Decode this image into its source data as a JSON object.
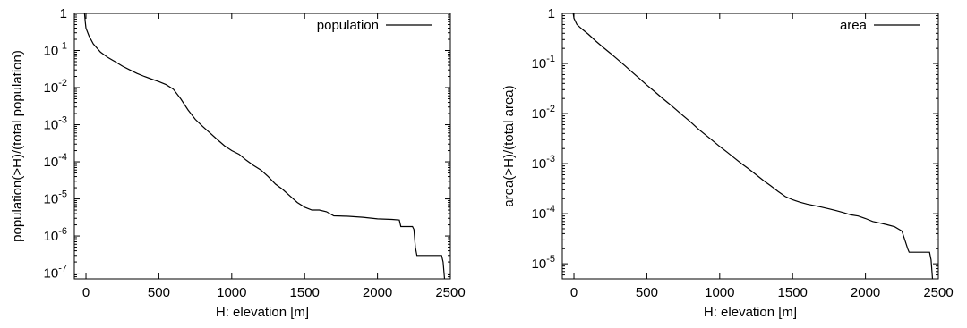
{
  "chart_data": [
    {
      "type": "line",
      "scale": {
        "x": "linear",
        "y": "log"
      },
      "xlabel": "H: elevation [m]",
      "ylabel": "population(>H)/(total population)",
      "xlim": [
        -80,
        2500
      ],
      "ylim": [
        7e-08,
        1
      ],
      "xticks": [
        {
          "value": 0,
          "label": "0"
        },
        {
          "value": 500,
          "label": "500"
        },
        {
          "value": 1000,
          "label": "1000"
        },
        {
          "value": 1500,
          "label": "1500"
        },
        {
          "value": 2000,
          "label": "2000"
        },
        {
          "value": 2500,
          "label": "2500"
        }
      ],
      "yticks": [
        {
          "value": 1,
          "base": "1",
          "exp": ""
        },
        {
          "value": 0.1,
          "base": "10",
          "exp": "-1"
        },
        {
          "value": 0.01,
          "base": "10",
          "exp": "-2"
        },
        {
          "value": 0.001,
          "base": "10",
          "exp": "-3"
        },
        {
          "value": 0.0001,
          "base": "10",
          "exp": "-4"
        },
        {
          "value": 1e-05,
          "base": "10",
          "exp": "-5"
        },
        {
          "value": 1e-06,
          "base": "10",
          "exp": "-6"
        },
        {
          "value": 1e-07,
          "base": "10",
          "exp": "-7"
        }
      ],
      "legend": "top-right",
      "grid": false,
      "series": [
        {
          "name": "population",
          "color": "#000000",
          "points": [
            [
              -10,
              1
            ],
            [
              -5,
              0.6
            ],
            [
              0,
              0.4
            ],
            [
              20,
              0.25
            ],
            [
              50,
              0.15
            ],
            [
              100,
              0.09
            ],
            [
              150,
              0.065
            ],
            [
              200,
              0.05
            ],
            [
              250,
              0.038
            ],
            [
              300,
              0.03
            ],
            [
              350,
              0.024
            ],
            [
              400,
              0.02
            ],
            [
              450,
              0.017
            ],
            [
              500,
              0.0145
            ],
            [
              550,
              0.012
            ],
            [
              600,
              0.009
            ],
            [
              650,
              0.005
            ],
            [
              700,
              0.0025
            ],
            [
              750,
              0.0014
            ],
            [
              800,
              0.0009
            ],
            [
              850,
              0.0006
            ],
            [
              900,
              0.0004
            ],
            [
              950,
              0.00027
            ],
            [
              1000,
              0.0002
            ],
            [
              1050,
              0.00016
            ],
            [
              1100,
              0.00011
            ],
            [
              1150,
              8e-05
            ],
            [
              1200,
              6e-05
            ],
            [
              1250,
              4e-05
            ],
            [
              1300,
              2.5e-05
            ],
            [
              1350,
              1.8e-05
            ],
            [
              1400,
              1.2e-05
            ],
            [
              1450,
              8e-06
            ],
            [
              1500,
              6e-06
            ],
            [
              1550,
              5e-06
            ],
            [
              1600,
              5e-06
            ],
            [
              1650,
              4.5e-06
            ],
            [
              1700,
              3.5e-06
            ],
            [
              1800,
              3.4e-06
            ],
            [
              1900,
              3.2e-06
            ],
            [
              2000,
              2.9e-06
            ],
            [
              2100,
              2.8e-06
            ],
            [
              2150,
              2.7e-06
            ],
            [
              2160,
              1.8e-06
            ],
            [
              2240,
              1.8e-06
            ],
            [
              2250,
              1.5e-06
            ],
            [
              2260,
              5e-07
            ],
            [
              2270,
              3e-07
            ],
            [
              2440,
              3e-07
            ],
            [
              2450,
              2e-07
            ],
            [
              2460,
              7e-08
            ]
          ]
        }
      ]
    },
    {
      "type": "line",
      "scale": {
        "x": "linear",
        "y": "log"
      },
      "xlabel": "H: elevation [m]",
      "ylabel": "area(>H)/(total area)",
      "xlim": [
        -80,
        2500
      ],
      "ylim": [
        5e-06,
        1
      ],
      "xticks": [
        {
          "value": 0,
          "label": "0"
        },
        {
          "value": 500,
          "label": "500"
        },
        {
          "value": 1000,
          "label": "1000"
        },
        {
          "value": 1500,
          "label": "1500"
        },
        {
          "value": 2000,
          "label": "2000"
        },
        {
          "value": 2500,
          "label": "2500"
        }
      ],
      "yticks": [
        {
          "value": 1,
          "base": "1",
          "exp": ""
        },
        {
          "value": 0.1,
          "base": "10",
          "exp": "-1"
        },
        {
          "value": 0.01,
          "base": "10",
          "exp": "-2"
        },
        {
          "value": 0.001,
          "base": "10",
          "exp": "-3"
        },
        {
          "value": 0.0001,
          "base": "10",
          "exp": "-4"
        },
        {
          "value": 1e-05,
          "base": "10",
          "exp": "-5"
        }
      ],
      "legend": "top-right",
      "grid": false,
      "series": [
        {
          "name": "area",
          "color": "#000000",
          "points": [
            [
              -5,
              1
            ],
            [
              0,
              0.8
            ],
            [
              20,
              0.6
            ],
            [
              50,
              0.5
            ],
            [
              100,
              0.38
            ],
            [
              150,
              0.28
            ],
            [
              200,
              0.21
            ],
            [
              250,
              0.16
            ],
            [
              300,
              0.12
            ],
            [
              350,
              0.09
            ],
            [
              400,
              0.067
            ],
            [
              450,
              0.05
            ],
            [
              500,
              0.037
            ],
            [
              550,
              0.028
            ],
            [
              600,
              0.021
            ],
            [
              650,
              0.016
            ],
            [
              700,
              0.012
            ],
            [
              750,
              0.009
            ],
            [
              800,
              0.0068
            ],
            [
              850,
              0.005
            ],
            [
              900,
              0.0038
            ],
            [
              950,
              0.0029
            ],
            [
              1000,
              0.0022
            ],
            [
              1050,
              0.0017
            ],
            [
              1100,
              0.0013
            ],
            [
              1150,
              0.001
            ],
            [
              1200,
              0.00078
            ],
            [
              1250,
              0.0006
            ],
            [
              1300,
              0.00046
            ],
            [
              1350,
              0.00036
            ],
            [
              1400,
              0.00028
            ],
            [
              1450,
              0.00022
            ],
            [
              1500,
              0.00019
            ],
            [
              1550,
              0.00017
            ],
            [
              1600,
              0.000155
            ],
            [
              1650,
              0.000145
            ],
            [
              1700,
              0.000135
            ],
            [
              1750,
              0.000125
            ],
            [
              1800,
              0.000115
            ],
            [
              1850,
              0.000105
            ],
            [
              1900,
              9.5e-05
            ],
            [
              1950,
              9e-05
            ],
            [
              2000,
              8e-05
            ],
            [
              2050,
              7e-05
            ],
            [
              2100,
              6.5e-05
            ],
            [
              2150,
              6e-05
            ],
            [
              2200,
              5.5e-05
            ],
            [
              2250,
              4.5e-05
            ],
            [
              2270,
              3e-05
            ],
            [
              2290,
              2e-05
            ],
            [
              2300,
              1.7e-05
            ],
            [
              2440,
              1.7e-05
            ],
            [
              2450,
              1.2e-05
            ],
            [
              2460,
              5e-06
            ]
          ]
        }
      ]
    }
  ]
}
